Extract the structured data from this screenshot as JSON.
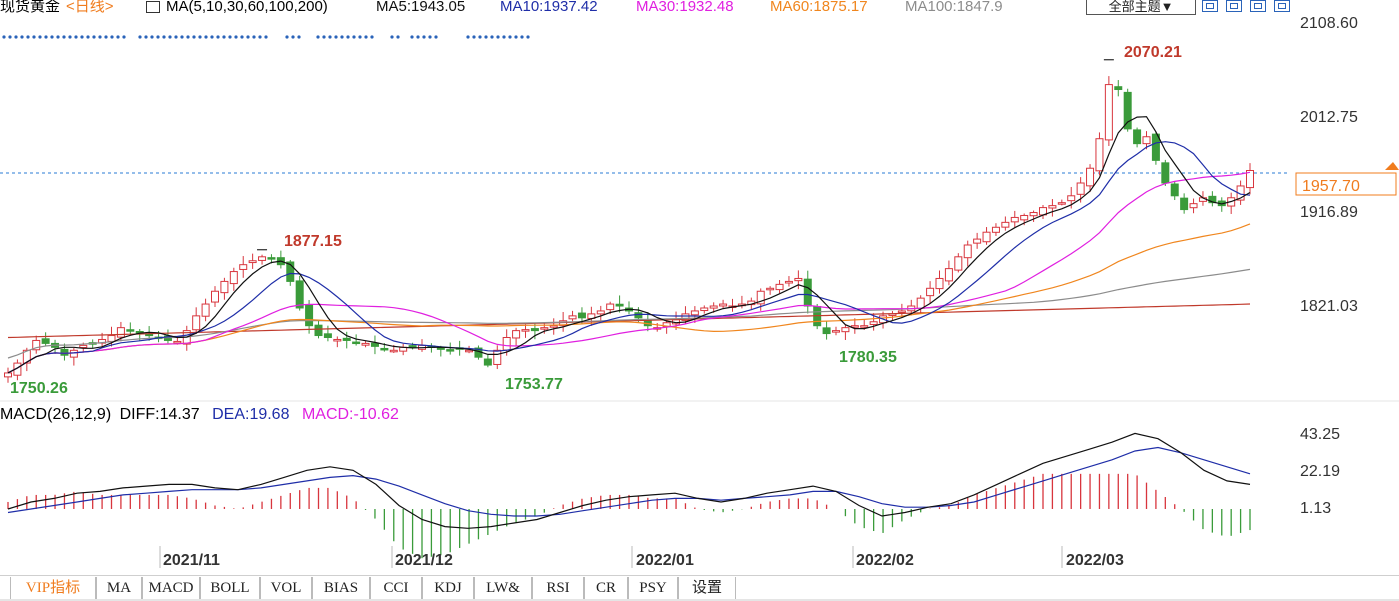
{
  "header": {
    "symbol": "现货黄金",
    "period": "<日线>",
    "ma_params": "MA(5,10,30,60,100,200)",
    "ma5": "MA5:1943.05",
    "ma10": "MA10:1937.42",
    "ma30": "MA30:1932.48",
    "ma60": "MA60:1875.17",
    "ma100": "MA100:1847.9",
    "theme_button": "全部主题▼",
    "colors": {
      "ma5": "#111111",
      "ma10": "#1f2ea8",
      "ma30": "#e020e0",
      "ma60": "#f0861e",
      "ma100": "#8c8c8c",
      "ma200": "#c0392b",
      "up": "#d8353d",
      "down": "#3a9b3a",
      "current": "#f07c1e"
    }
  },
  "price_axis": {
    "ticks": [
      "2108.60",
      "2012.75",
      "1916.89",
      "1821.03"
    ],
    "current_price": "1957.70"
  },
  "annotations": {
    "high": "2070.21",
    "nov_high": "1877.15",
    "left_low": "1750.26",
    "dec_low": "1753.77",
    "jan_low": "1780.35"
  },
  "dates": [
    "2021/11",
    "2021/12",
    "2022/01",
    "2022/02",
    "2022/03"
  ],
  "macd_header": {
    "title": "MACD(26,12,9)",
    "diff": "DIFF:14.37",
    "dea": "DEA:19.68",
    "macd": "MACD:-10.62"
  },
  "macd_axis": [
    "43.25",
    "22.19",
    "1.13"
  ],
  "tabs": [
    "VIP指标",
    "MA",
    "MACD",
    "BOLL",
    "VOL",
    "BIAS",
    "CCI",
    "KDJ",
    "LW&",
    "RSI",
    "CR",
    "PSY",
    "设置"
  ],
  "chart_data": {
    "type": "candlestick",
    "title": "现货黄金 <日线>",
    "y_axis_ticks": [
      2108.6,
      2012.75,
      1916.89,
      1821.03
    ],
    "ylim": [
      1735,
      2108.6
    ],
    "current_price": 1957.7,
    "extremes": {
      "high": 2070.21,
      "nov_high": 1877.15,
      "left_low": 1750.26,
      "dec_low": 1753.77,
      "jan_low": 1780.35
    },
    "x_labels": [
      "2021/11",
      "2021/12",
      "2022/01",
      "2022/02",
      "2022/03"
    ],
    "ma_latest": {
      "MA5": 1943.05,
      "MA10": 1937.42,
      "MA30": 1932.48,
      "MA60": 1875.17,
      "MA100": 1847.9
    },
    "close_trend": [
      1752,
      1762,
      1775,
      1785,
      1782,
      1778,
      1770,
      1775,
      1780,
      1782,
      1786,
      1790,
      1798,
      1795,
      1793,
      1790,
      1788,
      1785,
      1784,
      1795,
      1810,
      1822,
      1835,
      1845,
      1855,
      1862,
      1866,
      1870,
      1868,
      1862,
      1845,
      1818,
      1800,
      1790,
      1788,
      1786,
      1785,
      1783,
      1782,
      1779,
      1776,
      1775,
      1778,
      1779,
      1780,
      1778,
      1776,
      1775,
      1776,
      1775,
      1768,
      1760,
      1775,
      1788,
      1795,
      1796,
      1795,
      1798,
      1800,
      1805,
      1810,
      1808,
      1812,
      1815,
      1822,
      1820,
      1815,
      1808,
      1800,
      1798,
      1803,
      1806,
      1812,
      1815,
      1818,
      1820,
      1822,
      1820,
      1822,
      1825,
      1835,
      1838,
      1842,
      1845,
      1848,
      1820,
      1800,
      1792,
      1795,
      1798,
      1800,
      1800,
      1804,
      1810,
      1812,
      1815,
      1820,
      1828,
      1838,
      1848,
      1858,
      1870,
      1882,
      1888,
      1895,
      1900,
      1905,
      1910,
      1912,
      1915,
      1920,
      1922,
      1925,
      1932,
      1945,
      1960,
      1990,
      2045,
      2040,
      2000,
      1985,
      1992,
      1968,
      1945,
      1932,
      1918,
      1924,
      1930,
      1925,
      1922,
      1930,
      1942,
      1957.7
    ],
    "macd": {
      "ylim": [
        -15,
        48
      ],
      "ticks": [
        43.25,
        22.19,
        1.13
      ],
      "latest": {
        "DIFF": 14.37,
        "DEA": 19.68,
        "MACD": -10.62
      },
      "diff_trend": [
        0,
        4,
        6,
        9,
        10,
        12,
        13,
        14,
        14,
        12,
        11,
        14,
        18,
        22,
        24,
        22,
        14,
        2,
        -6,
        -10,
        -11,
        -10,
        -8,
        -6,
        -2,
        2,
        5,
        7,
        8,
        9,
        6,
        4,
        6,
        9,
        11,
        13,
        10,
        2,
        -4,
        -2,
        1,
        3,
        8,
        14,
        20,
        26,
        30,
        34,
        38,
        43,
        40,
        32,
        22,
        16,
        14
      ],
      "dea_trend": [
        -2,
        0,
        2,
        4,
        6,
        8,
        9,
        10,
        11,
        11,
        11,
        12,
        14,
        16,
        18,
        19,
        17,
        13,
        8,
        3,
        -1,
        -3,
        -4,
        -4,
        -3,
        -1,
        1,
        3,
        5,
        6,
        6,
        5,
        6,
        7,
        8,
        10,
        10,
        7,
        3,
        1,
        1,
        2,
        4,
        8,
        12,
        16,
        20,
        24,
        28,
        33,
        35,
        32,
        28,
        24,
        20
      ]
    }
  }
}
